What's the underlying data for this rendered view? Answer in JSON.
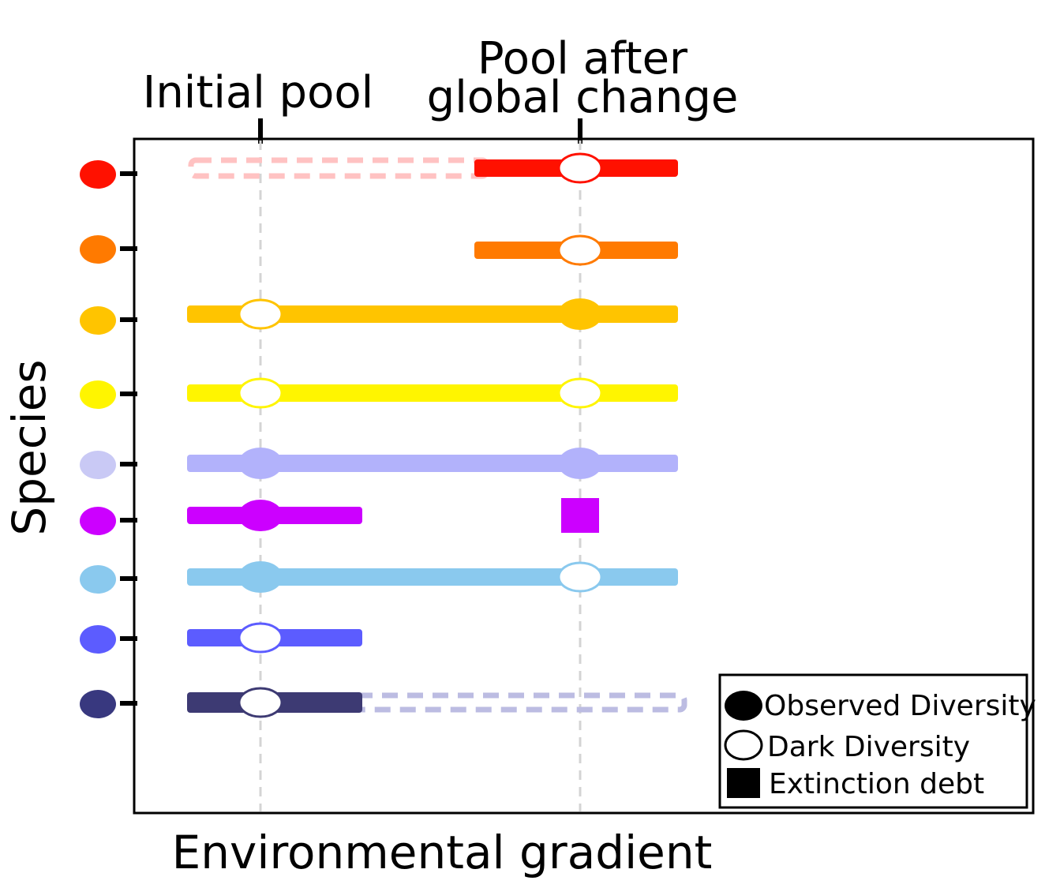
{
  "labels": {
    "initial_pool": "Initial pool",
    "pool_after_line1": "Pool after",
    "pool_after_line2": "global change",
    "x_axis": "Environmental gradient",
    "y_axis": "Species"
  },
  "legend": {
    "observed": "Observed Diversity",
    "dark": "Dark Diversity",
    "debt": "Extinction debt"
  },
  "species": [
    {
      "color": "#ff1100",
      "bar_color": "#ff1100",
      "range_from": "shifted",
      "range_to": "end",
      "initial_marker": "none",
      "after_marker": "dark",
      "ghost": "left",
      "ghost_color": "#ffc2c2"
    },
    {
      "color": "#ff7a00",
      "bar_color": "#ff7a00",
      "range_from": "shifted",
      "range_to": "end",
      "initial_marker": "none",
      "after_marker": "dark",
      "ghost": "none"
    },
    {
      "color": "#ffc400",
      "bar_color": "#ffc400",
      "range_from": "start",
      "range_to": "end",
      "initial_marker": "dark",
      "after_marker": "observed",
      "ghost": "none"
    },
    {
      "color": "#fff500",
      "bar_color": "#fff500",
      "range_from": "start",
      "range_to": "end",
      "initial_marker": "dark",
      "after_marker": "dark",
      "ghost": "none"
    },
    {
      "color": "#c9c9f5",
      "bar_color": "#b2b2fb",
      "range_from": "start",
      "range_to": "end",
      "initial_marker": "observed",
      "after_marker": "observed",
      "ghost": "none"
    },
    {
      "color": "#cc00ff",
      "bar_color": "#cc00ff",
      "range_from": "start",
      "range_to": "mid",
      "initial_marker": "observed",
      "after_marker": "debt",
      "ghost": "none"
    },
    {
      "color": "#8ac9ee",
      "bar_color": "#8ac9ee",
      "range_from": "start",
      "range_to": "end",
      "initial_marker": "observed",
      "after_marker": "dark",
      "ghost": "none"
    },
    {
      "color": "#5c5cff",
      "bar_color": "#5c5cff",
      "range_from": "start",
      "range_to": "mid",
      "initial_marker": "dark",
      "after_marker": "none",
      "ghost": "none"
    },
    {
      "color": "#38387f",
      "bar_color": "#3d3a73",
      "range_from": "start",
      "range_to": "mid",
      "initial_marker": "dark",
      "after_marker": "none",
      "ghost": "right",
      "ghost_color": "#bcbce2"
    }
  ]
}
